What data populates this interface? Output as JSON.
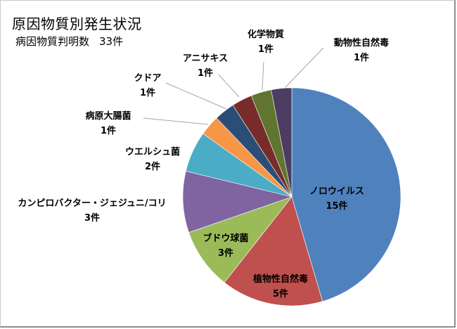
{
  "chart_data": {
    "type": "pie",
    "title": "原因物質別発生状況",
    "subtitle": "病因物質判明数",
    "total_label": "33件",
    "total": 33,
    "start_angle": "12 o'clock, clockwise",
    "categories": [
      "ノロウイルス",
      "植物性自然毒",
      "ブドウ球菌",
      "カンピロバクター・ジェジュニ/コリ",
      "ウエルシュ菌",
      "病原大腸菌",
      "クドア",
      "アニサキス",
      "化学物質",
      "動物性自然毒"
    ],
    "values": [
      15,
      5,
      3,
      3,
      2,
      1,
      1,
      1,
      1,
      1
    ],
    "unit": "件",
    "colors": [
      "#4f81bd",
      "#c0504d",
      "#9bbb59",
      "#8064a2",
      "#4bacc6",
      "#f79646",
      "#2c4d75",
      "#772c2a",
      "#5f7530",
      "#4d3b62"
    ],
    "legend": "none (data labels with category name and value)"
  },
  "labels": [
    {
      "name": "ノロウイルス",
      "value": "15件"
    },
    {
      "name": "植物性自然毒",
      "value": "5件"
    },
    {
      "name": "ブドウ球菌",
      "value": "3件"
    },
    {
      "name": "カンピロバクター・ジェジュニ/コリ",
      "value": "3件"
    },
    {
      "name": "ウエルシュ菌",
      "value": "2件"
    },
    {
      "name": "病原大腸菌",
      "value": "1件"
    },
    {
      "name": "クドア",
      "value": "1件"
    },
    {
      "name": "アニサキス",
      "value": "1件"
    },
    {
      "name": "化学物質",
      "value": "1件"
    },
    {
      "name": "動物性自然毒",
      "value": "1件"
    }
  ]
}
